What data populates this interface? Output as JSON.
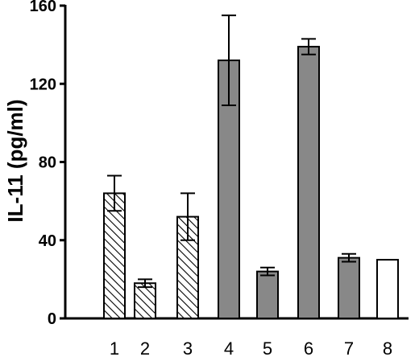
{
  "chart_data": {
    "type": "bar",
    "title": "",
    "xlabel": "",
    "ylabel": "IL-11 (pg/ml)",
    "ylim": [
      0,
      160
    ],
    "yticks": [
      0,
      40,
      80,
      120,
      160
    ],
    "grid": false,
    "categories": [
      "1",
      "2",
      "3",
      "4",
      "5",
      "6",
      "7",
      "8"
    ],
    "values": [
      64,
      18,
      52,
      132,
      24,
      139,
      31,
      30
    ],
    "errors": [
      9,
      2,
      12,
      23,
      2,
      4,
      2,
      0
    ],
    "fills": [
      "hatched",
      "hatched",
      "hatched",
      "gray",
      "gray",
      "gray",
      "gray",
      "white"
    ]
  }
}
